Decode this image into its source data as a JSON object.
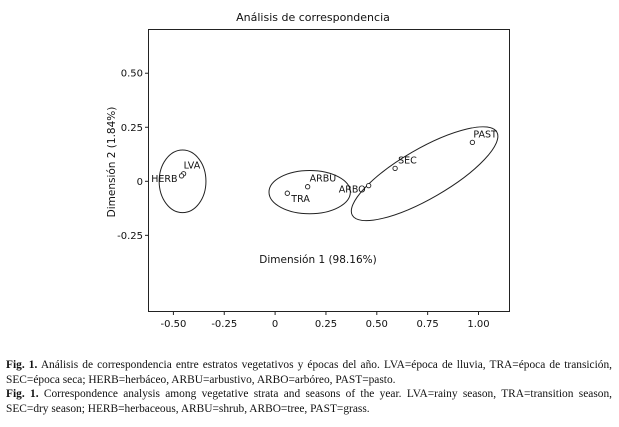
{
  "chart_data": {
    "type": "scatter",
    "title": "Análisis de correspondencia",
    "xlabel": "Dimensión 1 (98.16%)",
    "ylabel": "Dimensión 2 (1.84%)",
    "xlim": [
      -0.62,
      1.15
    ],
    "ylim": [
      -0.6,
      0.7
    ],
    "x_ticks": [
      -0.5,
      -0.25,
      0,
      0.25,
      0.5,
      0.75,
      1.0
    ],
    "x_tick_labels": [
      "-0.50",
      "-0.25",
      "0",
      "0.25",
      "0.50",
      "0.75",
      "1.00"
    ],
    "y_ticks": [
      0.5,
      0.25,
      0,
      -0.25
    ],
    "y_tick_labels": [
      "0.50",
      "0.25",
      "0",
      "-0.25"
    ],
    "grid": false,
    "points": [
      {
        "label": "LVA",
        "x": -0.45,
        "y": 0.035
      },
      {
        "label": "HERB",
        "x": -0.46,
        "y": 0.025
      },
      {
        "label": "ARBU",
        "x": 0.16,
        "y": -0.025
      },
      {
        "label": "TRA",
        "x": 0.06,
        "y": -0.055
      },
      {
        "label": "ARBO",
        "x": 0.46,
        "y": -0.02
      },
      {
        "label": "SEC",
        "x": 0.59,
        "y": 0.06
      },
      {
        "label": "PAST",
        "x": 0.97,
        "y": 0.18
      }
    ],
    "ellipses": [
      {
        "cx": -0.455,
        "cy": 0.0,
        "rx": 0.115,
        "ry": 0.145,
        "angle": 0
      },
      {
        "cx": 0.17,
        "cy": -0.05,
        "rx": 0.2,
        "ry": 0.1,
        "angle": 0
      },
      {
        "cx": 0.735,
        "cy": 0.035,
        "rx": 0.41,
        "ry": 0.115,
        "angle": 30
      }
    ]
  },
  "caption": {
    "es_label": "Fig. 1.",
    "es_text": "Análisis de correspondencia entre estratos vegetativos y épocas del año. LVA=época de lluvia, TRA=época de transición, SEC=época seca; HERB=herbáceo, ARBU=arbustivo, ARBO=arbóreo, PAST=pasto.",
    "en_label": "Fig. 1.",
    "en_text": "Correspondence analysis among vegetative strata and seasons of the year. LVA=rainy season, TRA=transition season, SEC=dry season; HERB=herbaceous, ARBU=shrub, ARBO=tree, PAST=grass."
  }
}
